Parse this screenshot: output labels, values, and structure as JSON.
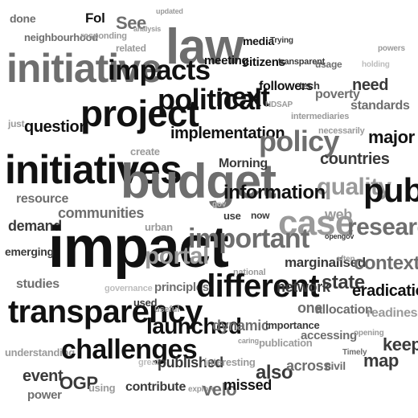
{
  "words": [
    "done",
    "neighbourhood",
    "Fol",
    "responding",
    "See",
    "analysis",
    "updated",
    "law",
    "media",
    "Trying",
    "citizens",
    "transparent",
    "usage",
    "powers",
    "holding",
    "related",
    "initiative",
    "impacts",
    "meeting",
    "followers",
    "tech",
    "need",
    "project",
    "political",
    "next",
    "NDSAP",
    "intermediaries",
    "poverty",
    "standards",
    "just",
    "question",
    "necessarily",
    "major",
    "initiatives",
    "budget",
    "implementation",
    "policy",
    "countries",
    "create",
    "Morning",
    "quality",
    "public",
    "resource",
    "information",
    "case",
    "web",
    "research",
    "demand",
    "communities",
    "impact",
    "urban",
    "gov",
    "use",
    "now",
    "opengov",
    "emerging",
    "portal",
    "important",
    "marginalised",
    "often",
    "contexts",
    "national",
    "governance",
    "studies",
    "principles",
    "different",
    "network",
    "state",
    "eradication",
    "transparency",
    "used",
    "useful",
    "one",
    "allocation",
    "readiness",
    "launched",
    "dynamic",
    "importance",
    "accessing",
    "opening",
    "keep",
    "understanding",
    "challenges",
    "great",
    "published",
    "interesting",
    "caring",
    "publication",
    "Timely",
    "map",
    "civil",
    "event",
    "OGP",
    "using",
    "contribute",
    "explore",
    "velo",
    "missed",
    "also",
    "across",
    "power"
  ]
}
